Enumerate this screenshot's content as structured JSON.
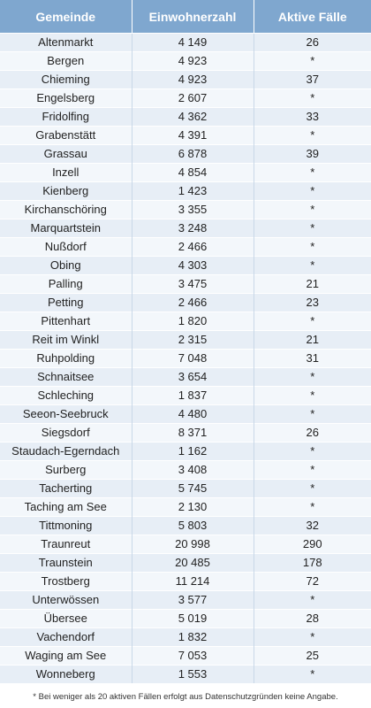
{
  "table": {
    "headers": [
      "Gemeinde",
      "Einwohnerzahl",
      "Aktive Fälle"
    ],
    "rows": [
      [
        "Altenmarkt",
        "4 149",
        "26"
      ],
      [
        "Bergen",
        "4 923",
        "*"
      ],
      [
        "Chieming",
        "4 923",
        "37"
      ],
      [
        "Engelsberg",
        "2 607",
        "*"
      ],
      [
        "Fridolfing",
        "4 362",
        "33"
      ],
      [
        "Grabenstätt",
        "4 391",
        "*"
      ],
      [
        "Grassau",
        "6 878",
        "39"
      ],
      [
        "Inzell",
        "4 854",
        "*"
      ],
      [
        "Kienberg",
        "1 423",
        "*"
      ],
      [
        "Kirchanschöring",
        "3 355",
        "*"
      ],
      [
        "Marquartstein",
        "3 248",
        "*"
      ],
      [
        "Nußdorf",
        "2 466",
        "*"
      ],
      [
        "Obing",
        "4 303",
        "*"
      ],
      [
        "Palling",
        "3 475",
        "21"
      ],
      [
        "Petting",
        "2 466",
        "23"
      ],
      [
        "Pittenhart",
        "1 820",
        "*"
      ],
      [
        "Reit im Winkl",
        "2 315",
        "21"
      ],
      [
        "Ruhpolding",
        "7 048",
        "31"
      ],
      [
        "Schnaitsee",
        "3 654",
        "*"
      ],
      [
        "Schleching",
        "1 837",
        "*"
      ],
      [
        "Seeon-Seebruck",
        "4 480",
        "*"
      ],
      [
        "Siegsdorf",
        "8 371",
        "26"
      ],
      [
        "Staudach-Egerndach",
        "1 162",
        "*"
      ],
      [
        "Surberg",
        "3 408",
        "*"
      ],
      [
        "Tacherting",
        "5 745",
        "*"
      ],
      [
        "Taching am See",
        "2 130",
        "*"
      ],
      [
        "Tittmoning",
        "5 803",
        "32"
      ],
      [
        "Traunreut",
        "20 998",
        "290"
      ],
      [
        "Traunstein",
        "20 485",
        "178"
      ],
      [
        "Trostberg",
        "11 214",
        "72"
      ],
      [
        "Unterwössen",
        "3 577",
        "*"
      ],
      [
        "Übersee",
        "5 019",
        "28"
      ],
      [
        "Vachendorf",
        "1 832",
        "*"
      ],
      [
        "Waging am See",
        "7 053",
        "25"
      ],
      [
        "Wonneberg",
        "1 553",
        "*"
      ]
    ]
  },
  "footnote": "* Bei weniger als 20 aktiven Fällen erfolgt aus Datenschutzgründen keine Angabe.",
  "colors": {
    "header_bg": "#7fa7cf",
    "row_odd": "#e7eef6",
    "row_even": "#f3f7fb"
  }
}
